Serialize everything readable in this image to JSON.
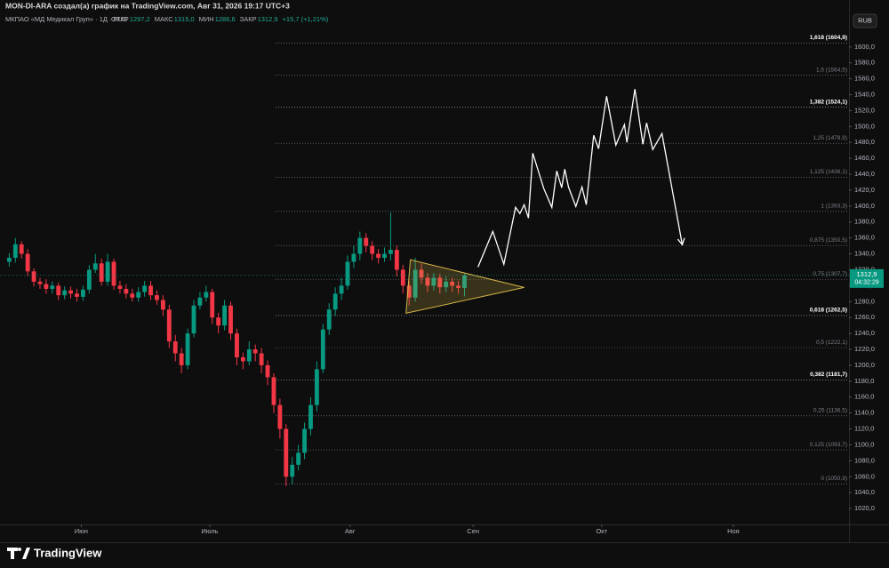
{
  "header": {
    "caption": "MON-DI-ARA создал(а) график на TradingView.com, Авг 31, 2026 19:17 UTC+3",
    "symbol": "МКПАО «МД Медикал Груп» · 1Д · RUS",
    "ohlc": [
      {
        "label": "ОТКР",
        "value": "1297,2"
      },
      {
        "label": "МАКС",
        "value": "1315,0"
      },
      {
        "label": "МИН",
        "value": "1286,6"
      },
      {
        "label": "ЗАКР",
        "value": "1312,9"
      }
    ],
    "change": "+15,7 (+1,21%)",
    "currency_button": "RUB",
    "logo": "TradingView"
  },
  "chart_data": {
    "type": "candlestick",
    "up_color": "#089981",
    "down_color": "#f23645",
    "grid": false,
    "xlim": [
      -1.5,
      136.5
    ],
    "xticks": [
      {
        "value": 11.7,
        "label": "Июн"
      },
      {
        "value": 32.6,
        "label": "Июль"
      },
      {
        "value": 55.4,
        "label": "Авг"
      },
      {
        "value": 75.4,
        "label": "Сен"
      },
      {
        "value": 96.3,
        "label": "Окт"
      },
      {
        "value": 117.7,
        "label": "Ноя"
      }
    ],
    "ylim": [
      1000,
      1650
    ],
    "yticks": [
      {
        "value": 1020,
        "label": "1020,0"
      },
      {
        "value": 1040,
        "label": "1040,0"
      },
      {
        "value": 1060,
        "label": "1060,0"
      },
      {
        "value": 1080,
        "label": "1080,0"
      },
      {
        "value": 1100,
        "label": "1100,0"
      },
      {
        "value": 1120,
        "label": "1120,0"
      },
      {
        "value": 1140,
        "label": "1140,0"
      },
      {
        "value": 1160,
        "label": "1160,0"
      },
      {
        "value": 1180,
        "label": "1180,0"
      },
      {
        "value": 1200,
        "label": "1200,0"
      },
      {
        "value": 1220,
        "label": "1220,0"
      },
      {
        "value": 1240,
        "label": "1240,0"
      },
      {
        "value": 1260,
        "label": "1260,0"
      },
      {
        "value": 1280,
        "label": "1280,0"
      },
      {
        "value": 1300,
        "label": "1300,0"
      },
      {
        "value": 1320,
        "label": "1320,0"
      },
      {
        "value": 1340,
        "label": "1340,0"
      },
      {
        "value": 1360,
        "label": "1360,0"
      },
      {
        "value": 1380,
        "label": "1380,0"
      },
      {
        "value": 1400,
        "label": "1400,0"
      },
      {
        "value": 1420,
        "label": "1420,0"
      },
      {
        "value": 1440,
        "label": "1440,0"
      },
      {
        "value": 1460,
        "label": "1460,0"
      },
      {
        "value": 1480,
        "label": "1480,0"
      },
      {
        "value": 1500,
        "label": "1500,0"
      },
      {
        "value": 1520,
        "label": "1520,0"
      },
      {
        "value": 1540,
        "label": "1540,0"
      },
      {
        "value": 1560,
        "label": "1560,0"
      },
      {
        "value": 1580,
        "label": "1580,0"
      },
      {
        "value": 1600,
        "label": "1600,0"
      }
    ],
    "open": [
      1330,
      1335,
      1352,
      1340,
      1318,
      1305,
      1302,
      1296,
      1300,
      1288,
      1294,
      1290,
      1286,
      1295,
      1320,
      1328,
      1305,
      1330,
      1300,
      1296,
      1290,
      1285,
      1292,
      1300,
      1288,
      1282,
      1270,
      1230,
      1215,
      1200,
      1240,
      1275,
      1285,
      1292,
      1260,
      1250,
      1275,
      1240,
      1210,
      1205,
      1220,
      1215,
      1200,
      1185,
      1150,
      1120,
      1060,
      1075,
      1090,
      1120,
      1150,
      1195,
      1245,
      1270,
      1290,
      1300,
      1330,
      1340,
      1360,
      1350,
      1340,
      1335,
      1340,
      1345,
      1320,
      1300,
      1285,
      1320,
      1310,
      1300,
      1310,
      1298,
      1305,
      1300,
      1297.2
    ],
    "high": [
      1341,
      1360,
      1356,
      1346,
      1322,
      1310,
      1308,
      1305,
      1304,
      1299,
      1299,
      1296,
      1300,
      1326,
      1340,
      1334,
      1340,
      1334,
      1306,
      1302,
      1296,
      1298,
      1306,
      1306,
      1294,
      1288,
      1276,
      1238,
      1222,
      1246,
      1282,
      1292,
      1300,
      1296,
      1266,
      1282,
      1280,
      1246,
      1216,
      1230,
      1226,
      1222,
      1206,
      1190,
      1158,
      1126,
      1085,
      1100,
      1128,
      1160,
      1205,
      1252,
      1278,
      1298,
      1310,
      1338,
      1350,
      1368,
      1366,
      1356,
      1346,
      1348,
      1392,
      1350,
      1326,
      1306,
      1335,
      1328,
      1316,
      1316,
      1315,
      1312,
      1310,
      1306,
      1315
    ],
    "low": [
      1324,
      1329,
      1334,
      1312,
      1299,
      1296,
      1290,
      1290,
      1282,
      1283,
      1284,
      1280,
      1281,
      1290,
      1316,
      1300,
      1300,
      1295,
      1290,
      1284,
      1280,
      1280,
      1286,
      1282,
      1276,
      1262,
      1222,
      1205,
      1190,
      1195,
      1235,
      1270,
      1280,
      1252,
      1240,
      1244,
      1232,
      1200,
      1195,
      1200,
      1205,
      1190,
      1175,
      1140,
      1108,
      1048,
      1050,
      1068,
      1082,
      1112,
      1142,
      1190,
      1238,
      1262,
      1282,
      1295,
      1322,
      1332,
      1342,
      1332,
      1328,
      1330,
      1332,
      1312,
      1290,
      1275,
      1280,
      1302,
      1292,
      1294,
      1290,
      1292,
      1292,
      1290,
      1286.6
    ],
    "close": [
      1335,
      1352,
      1340,
      1318,
      1305,
      1302,
      1296,
      1300,
      1288,
      1294,
      1290,
      1286,
      1295,
      1320,
      1328,
      1305,
      1330,
      1300,
      1296,
      1290,
      1285,
      1292,
      1300,
      1288,
      1282,
      1270,
      1230,
      1215,
      1200,
      1240,
      1275,
      1285,
      1292,
      1260,
      1250,
      1275,
      1240,
      1210,
      1205,
      1220,
      1215,
      1200,
      1185,
      1150,
      1120,
      1060,
      1075,
      1090,
      1120,
      1150,
      1195,
      1245,
      1270,
      1290,
      1300,
      1330,
      1340,
      1360,
      1350,
      1340,
      1335,
      1340,
      1345,
      1320,
      1300,
      1285,
      1320,
      1310,
      1300,
      1310,
      1298,
      1305,
      1300,
      1297.2,
      1312.9
    ],
    "last_price": {
      "value": 1312.9,
      "label": "1312,9",
      "timer": "04:32:29"
    },
    "fib": {
      "x_range": [
        43.3,
        136.5
      ],
      "color": "#8a8d96",
      "levels": [
        {
          "value": 1050.9,
          "label": "0 (1050,9)",
          "highlight": false
        },
        {
          "value": 1093.7,
          "label": "0,125 (1093,7)",
          "highlight": false
        },
        {
          "value": 1136.5,
          "label": "0,25 (1136,5)",
          "highlight": false
        },
        {
          "value": 1181.7,
          "label": "0,382 (1181,7)",
          "highlight": true
        },
        {
          "value": 1222.1,
          "label": "0,5 (1222,1)",
          "highlight": false
        },
        {
          "value": 1262.5,
          "label": "0,618 (1262,5)",
          "highlight": true
        },
        {
          "value": 1307.7,
          "label": "0,75 (1307,7)",
          "highlight": false
        },
        {
          "value": 1350.5,
          "label": "0,875 (1350,5)",
          "highlight": false
        },
        {
          "value": 1393.3,
          "label": "1 (1393,3)",
          "highlight": false
        },
        {
          "value": 1436.1,
          "label": "1,125 (1436,1)",
          "highlight": false
        },
        {
          "value": 1478.9,
          "label": "1,25 (1478,9)",
          "highlight": false
        },
        {
          "value": 1524.1,
          "label": "1,382 (1524,1)",
          "highlight": true
        },
        {
          "value": 1564.5,
          "label": "1,5 (1564,5)",
          "highlight": false
        },
        {
          "value": 1604.9,
          "label": "1,618 (1604,9)",
          "highlight": true
        }
      ]
    },
    "triangle": {
      "x": [
        65.2,
        64.5,
        83.7
      ],
      "values": [
        1332.5,
        1265.4,
        1297.8
      ],
      "color": "#d4b64a"
    },
    "projection": {
      "color": "#ffffff",
      "x": [
        76.2,
        78.6,
        80.4,
        82.3,
        83.0,
        83.7,
        84.4,
        85.1,
        86.9,
        88.2,
        89.0,
        89.8,
        90.3,
        90.9,
        92.1,
        93.1,
        93.8,
        95.0,
        95.8,
        97.1,
        98.6,
        100.0,
        100.4,
        101.7,
        103.0,
        103.6,
        104.6,
        106.1,
        109.4
      ],
      "values": [
        1323.5,
        1368.2,
        1326.9,
        1398.4,
        1390.6,
        1401.7,
        1385.0,
        1466.5,
        1421.8,
        1398.4,
        1444.2,
        1423.0,
        1446.4,
        1424.1,
        1399.5,
        1424.1,
        1401.7,
        1488.9,
        1472.1,
        1538.1,
        1476.6,
        1502.3,
        1480.0,
        1547.0,
        1477.7,
        1504.5,
        1471.0,
        1491.1,
        1351.5
      ]
    }
  }
}
